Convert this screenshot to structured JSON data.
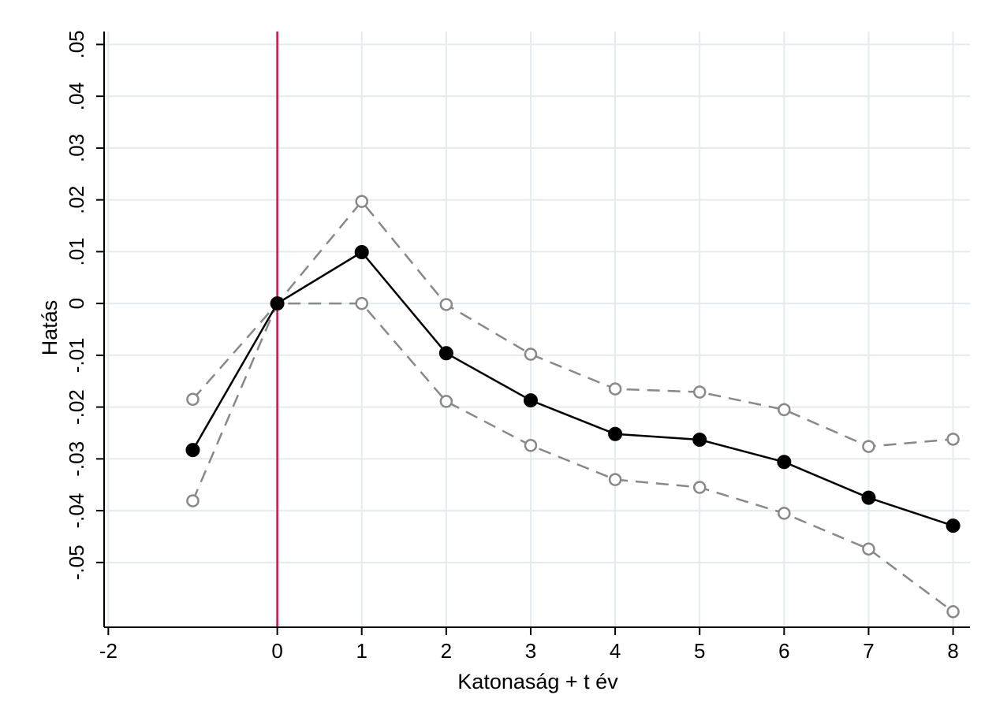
{
  "chart_data": {
    "type": "line",
    "xlabel": "Katonaság + t év",
    "ylabel": "Hatás",
    "xlim": [
      -2.05,
      8.2
    ],
    "ylim": [
      -0.0625,
      0.0525
    ],
    "x_ticks": [
      -2,
      0,
      1,
      2,
      3,
      4,
      5,
      6,
      7,
      8
    ],
    "x_tick_labels": [
      "-2",
      "0",
      "1",
      "2",
      "3",
      "4",
      "5",
      "6",
      "7",
      "8"
    ],
    "y_ticks": [
      -0.05,
      -0.04,
      -0.03,
      -0.02,
      -0.01,
      0,
      0.01,
      0.02,
      0.03,
      0.04,
      0.05
    ],
    "y_tick_labels": [
      "-.05",
      "-.04",
      "-.03",
      "-.02",
      "-.01",
      "0",
      ".01",
      ".02",
      ".03",
      ".04",
      ".05"
    ],
    "grid": true,
    "reference_line_x": 0,
    "x": [
      -1,
      0,
      1,
      2,
      3,
      4,
      5,
      6,
      7,
      8
    ],
    "series": [
      {
        "role": "estimate",
        "values": [
          -0.0283,
          0,
          0.0099,
          -0.0096,
          -0.0187,
          -0.0252,
          -0.0263,
          -0.0306,
          -0.0375,
          -0.0429
        ],
        "color": "#000000",
        "dash": "solid",
        "marker": "filled-circle"
      },
      {
        "role": "upper-bound",
        "values": [
          -0.0185,
          0,
          0.0197,
          -0.0002,
          -0.0098,
          -0.0165,
          -0.0171,
          -0.0205,
          -0.0276,
          -0.0262
        ],
        "color": "#888888",
        "dash": "dashed",
        "marker": "hollow-circle"
      },
      {
        "role": "lower-bound",
        "values": [
          -0.0381,
          0,
          0,
          -0.0189,
          -0.0274,
          -0.034,
          -0.0355,
          -0.0405,
          -0.0474,
          -0.0595
        ],
        "color": "#888888",
        "dash": "dashed",
        "marker": "hollow-circle"
      }
    ],
    "colors": {
      "grid": "#e3ebee",
      "axis": "#000000",
      "reference_line": "#c9173d"
    }
  }
}
